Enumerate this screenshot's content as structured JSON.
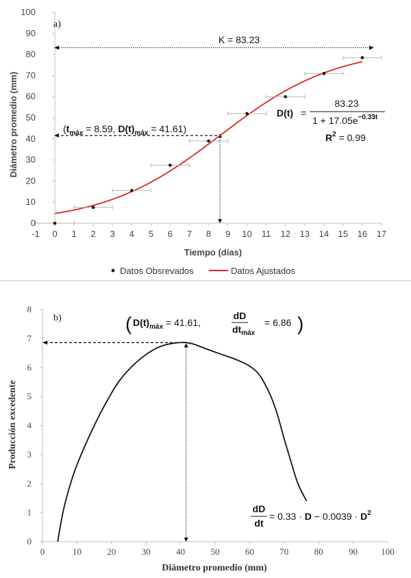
{
  "chart_data": [
    {
      "type": "scatter",
      "panel_label": "a)",
      "xlabel": "Tiempo (días)",
      "ylabel": "Diámetro promedio (mm)",
      "xlim": [
        -1,
        17
      ],
      "ylim": [
        0,
        100
      ],
      "xticks": [
        "-1",
        "0",
        "1",
        "2",
        "3",
        "4",
        "5",
        "6",
        "7",
        "8",
        "9",
        "10",
        "11",
        "12",
        "13",
        "14",
        "15",
        "16",
        "17"
      ],
      "yticks": [
        "0",
        "10",
        "20",
        "30",
        "40",
        "50",
        "60",
        "70",
        "80",
        "90",
        "100"
      ],
      "series": [
        {
          "name": "Datos Obsrevados",
          "kind": "points",
          "x": [
            0,
            2,
            4,
            6,
            8,
            10,
            12,
            14,
            16
          ],
          "y": [
            0,
            7.5,
            15.5,
            27.5,
            39,
            52,
            60,
            71,
            78.5
          ],
          "xerr": [
            1.0,
            1.0,
            1.0,
            1.0,
            1.0,
            1.0,
            1.0,
            1.0,
            1.0
          ]
        },
        {
          "name": "Datos Ajustados",
          "kind": "line",
          "color": "#d9261c",
          "model": {
            "K": 83.23,
            "a": 17.05,
            "r": 0.33
          },
          "x_range": [
            0,
            16
          ]
        }
      ],
      "reference": {
        "K": 83.23,
        "t_max": 8.59,
        "D_max": 41.61
      },
      "annotations": {
        "k_text": "K = 83.23",
        "tmax_open": "(",
        "tmax_sym": "t",
        "tmax_sub": "máx",
        "tmax_eq": " = 8.59, ",
        "dmax_sym": "D(t)",
        "dmax_sub": "máx",
        "dmax_eq": " = 41.61)",
        "eq_lhs": "D(t)",
        "eq_eq": " =",
        "eq_num": "83.23",
        "eq_den": "1 + 17.05e",
        "eq_exp": "−0.33t",
        "r2_sym": "R",
        "r2_sup": "2",
        "r2_eq": " = 0.99"
      },
      "legend": [
        "Datos Obsrevados",
        "Datos Ajustados"
      ]
    },
    {
      "type": "line",
      "panel_label": "b)",
      "xlabel": "Diámetro promedio (mm)",
      "ylabel": "Producción excedente",
      "xlim": [
        0,
        100
      ],
      "ylim": [
        0,
        8
      ],
      "xticks": [
        "0",
        "10",
        "20",
        "30",
        "40",
        "50",
        "60",
        "70",
        "80",
        "90",
        "100"
      ],
      "yticks": [
        "0",
        "1",
        "2",
        "3",
        "4",
        "5",
        "6",
        "7",
        "8"
      ],
      "x": [
        4.4,
        6,
        8,
        10,
        14,
        18,
        22,
        26,
        30,
        34,
        38,
        41.61,
        44,
        48,
        52,
        56,
        60,
        63,
        66,
        68,
        70,
        72,
        74,
        76.5
      ],
      "y": [
        0,
        1.05,
        1.95,
        2.65,
        3.75,
        4.7,
        5.5,
        6.05,
        6.45,
        6.72,
        6.84,
        6.86,
        6.8,
        6.62,
        6.45,
        6.28,
        6.05,
        5.72,
        5.05,
        4.4,
        3.55,
        2.75,
        2.0,
        1.4
      ],
      "reference": {
        "D_max": 41.61,
        "dDdt_max": 6.86
      },
      "annotations": {
        "top_open": "(",
        "top_sym": "D(t)",
        "top_sub": "máx",
        "top_eq": " = 41.61,",
        "frac_num": "dD",
        "frac_den": "dt",
        "frac_sub": "máx",
        "top_val": " = 6.86",
        "top_close": ")",
        "br_num": "dD",
        "br_den": "dt",
        "br_eq": " = 0.33 · ",
        "br_d1": "D",
        "br_mid": " − 0.0039 · ",
        "br_d2": "D",
        "br_sup": "2"
      }
    }
  ]
}
